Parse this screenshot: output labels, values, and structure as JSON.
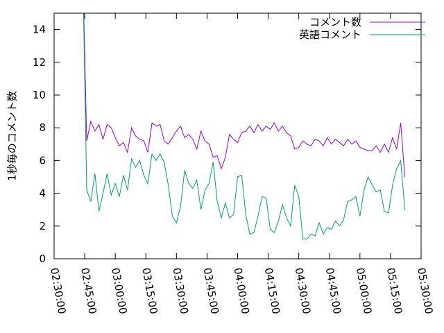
{
  "chart_data": {
    "type": "line",
    "ylabel": "1秒毎のコメント数",
    "x": [
      "02:44:00",
      "02:46:00",
      "02:48:00",
      "02:50:00",
      "02:52:00",
      "02:54:00",
      "02:56:00",
      "02:58:00",
      "03:00:00",
      "03:02:00",
      "03:04:00",
      "03:06:00",
      "03:08:00",
      "03:10:00",
      "03:12:00",
      "03:14:00",
      "03:16:00",
      "03:18:00",
      "03:20:00",
      "03:22:00",
      "03:24:00",
      "03:26:00",
      "03:28:00",
      "03:30:00",
      "03:32:00",
      "03:34:00",
      "03:36:00",
      "03:38:00",
      "03:40:00",
      "03:42:00",
      "03:44:00",
      "03:46:00",
      "03:48:00",
      "03:50:00",
      "03:52:00",
      "03:54:00",
      "03:56:00",
      "03:58:00",
      "04:00:00",
      "04:02:00",
      "04:04:00",
      "04:06:00",
      "04:08:00",
      "04:10:00",
      "04:12:00",
      "04:14:00",
      "04:16:00",
      "04:18:00",
      "04:20:00",
      "04:22:00",
      "04:24:00",
      "04:26:00",
      "04:28:00",
      "04:30:00",
      "04:32:00",
      "04:34:00",
      "04:36:00",
      "04:38:00",
      "04:40:00",
      "04:42:00",
      "04:44:00",
      "04:46:00",
      "04:48:00",
      "04:50:00",
      "04:52:00",
      "04:54:00",
      "04:56:00",
      "04:58:00",
      "05:00:00",
      "05:02:00",
      "05:04:00",
      "05:06:00",
      "05:08:00",
      "05:10:00",
      "05:12:00",
      "05:14:00",
      "05:16:00",
      "05:18:00",
      "05:20:00",
      "05:22:00"
    ],
    "series": [
      {
        "name": "コメント数",
        "color": "#9400d3",
        "values": [
          18,
          7.2,
          8.4,
          7.8,
          8.2,
          7.3,
          8.2,
          8.0,
          7.4,
          6.9,
          7.1,
          6.5,
          8.0,
          7.5,
          7.3,
          7.2,
          6.5,
          8.3,
          8.1,
          8.2,
          7.2,
          7.0,
          7.4,
          7.8,
          8.1,
          7.4,
          7.6,
          7.3,
          6.7,
          7.8,
          7.2,
          7.0,
          6.2,
          6.3,
          5.5,
          6.2,
          7.6,
          7.3,
          7.1,
          7.7,
          7.8,
          8.1,
          7.7,
          8.2,
          7.8,
          8.1,
          7.9,
          8.3,
          7.8,
          8.1,
          7.7,
          7.5,
          6.7,
          6.8,
          7.2,
          7.0,
          6.9,
          7.3,
          7.2,
          6.9,
          7.4,
          7.0,
          7.3,
          7.1,
          6.9,
          7.3,
          7.0,
          7.2,
          6.8,
          6.7,
          6.6,
          6.6,
          6.9,
          6.5,
          7.0,
          6.5,
          7.4,
          6.7,
          8.3,
          5.0
        ]
      },
      {
        "name": "英語コメント",
        "color": "#009e73",
        "values": [
          18,
          4.2,
          3.5,
          5.2,
          2.9,
          4.0,
          5.2,
          3.9,
          4.6,
          3.8,
          5.1,
          4.2,
          6.1,
          5.6,
          6.0,
          5.1,
          4.6,
          6.4,
          6.0,
          6.4,
          5.9,
          4.5,
          2.6,
          2.2,
          3.2,
          5.4,
          4.6,
          4.3,
          4.8,
          3.0,
          4.2,
          4.6,
          5.9,
          3.5,
          2.5,
          3.4,
          2.5,
          2.7,
          5.0,
          5.1,
          2.7,
          1.5,
          1.6,
          2.6,
          3.8,
          3.7,
          1.8,
          1.6,
          2.3,
          3.3,
          2.5,
          2.0,
          4.5,
          3.8,
          1.2,
          1.2,
          1.5,
          1.4,
          2.2,
          1.5,
          1.9,
          1.8,
          2.3,
          2.0,
          2.4,
          3.5,
          3.6,
          3.8,
          2.6,
          4.2,
          5.0,
          4.5,
          4.1,
          4.2,
          2.9,
          2.8,
          4.5,
          5.5,
          6.0,
          3.0
        ]
      }
    ],
    "xlim": [
      "02:30:00",
      "05:30:00"
    ],
    "xticks": [
      "02:30:00",
      "02:45:00",
      "03:00:00",
      "03:15:00",
      "03:30:00",
      "03:45:00",
      "04:00:00",
      "04:15:00",
      "04:30:00",
      "04:45:00",
      "05:00:00",
      "05:15:00",
      "05:30:00"
    ],
    "ylim": [
      0,
      15
    ],
    "yticks": [
      0,
      2,
      4,
      6,
      8,
      10,
      12,
      14
    ],
    "legend": "top-right"
  }
}
